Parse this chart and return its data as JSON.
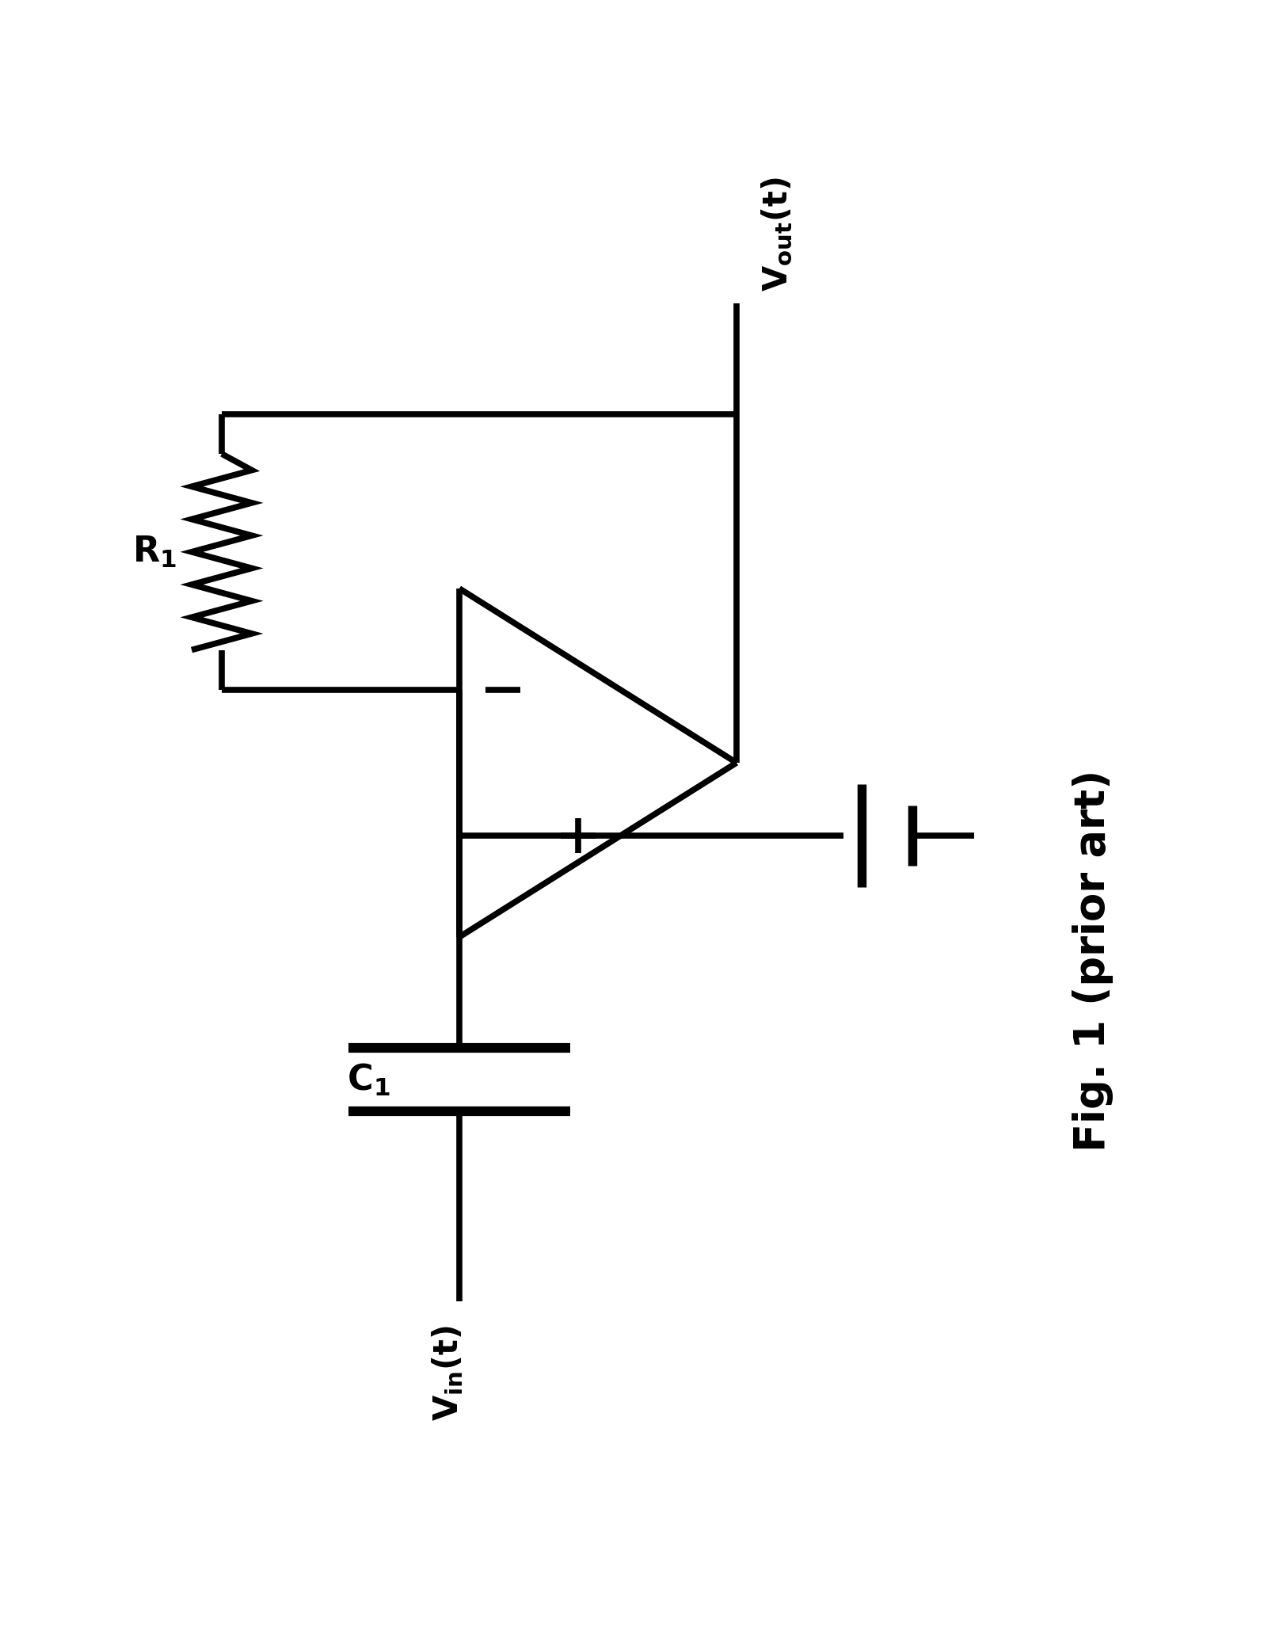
{
  "bg_color": "#ffffff",
  "line_color": "#000000",
  "line_width": 5.5,
  "fig_width": 16.2,
  "fig_height": 20.63,
  "title": "Fig. 1 (prior art)",
  "xlim": [
    0,
    16.2
  ],
  "ylim": [
    0,
    20.63
  ]
}
